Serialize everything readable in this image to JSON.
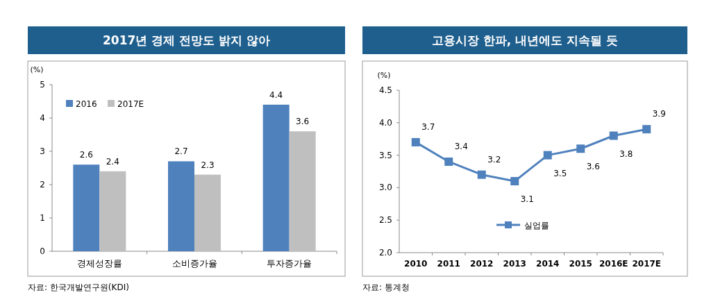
{
  "chart_data": [
    {
      "type": "bar",
      "title": "2017년 경제 전망도 밝지 않아",
      "ylabel": "(%)",
      "categories": [
        "경제성장률",
        "소비증가율",
        "투자증가율"
      ],
      "series": [
        {
          "name": "2016",
          "color": "#4f81bd",
          "values": [
            2.6,
            2.7,
            4.4
          ]
        },
        {
          "name": "2017E",
          "color": "#bfbfbf",
          "values": [
            2.4,
            2.3,
            3.6
          ]
        }
      ],
      "ylim": [
        0,
        5
      ],
      "yticks": [
        0,
        1,
        2,
        3,
        4,
        5
      ],
      "legend": "top left",
      "data_labels": true,
      "annotations": [
        "자료: 한국개발연구원(KDI)"
      ]
    },
    {
      "type": "line",
      "title": "고용시장 한파, 내년에도 지속될 듯",
      "ylabel": "(%)",
      "categories": [
        "2010",
        "2011",
        "2012",
        "2013",
        "2014",
        "2015",
        "2016E",
        "2017E"
      ],
      "series": [
        {
          "name": "실업률",
          "color": "#4f81bd",
          "values": [
            3.7,
            3.4,
            3.2,
            3.1,
            3.5,
            3.6,
            3.8,
            3.9
          ]
        }
      ],
      "ylim": [
        2.0,
        4.5
      ],
      "yticks": [
        {
          "value": 2.0,
          "label": "2.0"
        },
        {
          "value": 2.5,
          "label": "2.5"
        },
        {
          "value": 3.0,
          "label": "3.0"
        },
        {
          "value": 3.5,
          "label": "3.5"
        },
        {
          "value": 4.0,
          "label": "4.0"
        },
        {
          "value": 4.5,
          "label": "4.5"
        }
      ],
      "marker": "square",
      "legend": "bottom",
      "data_labels": true,
      "annotations": [
        "자료: 통계청"
      ]
    }
  ]
}
